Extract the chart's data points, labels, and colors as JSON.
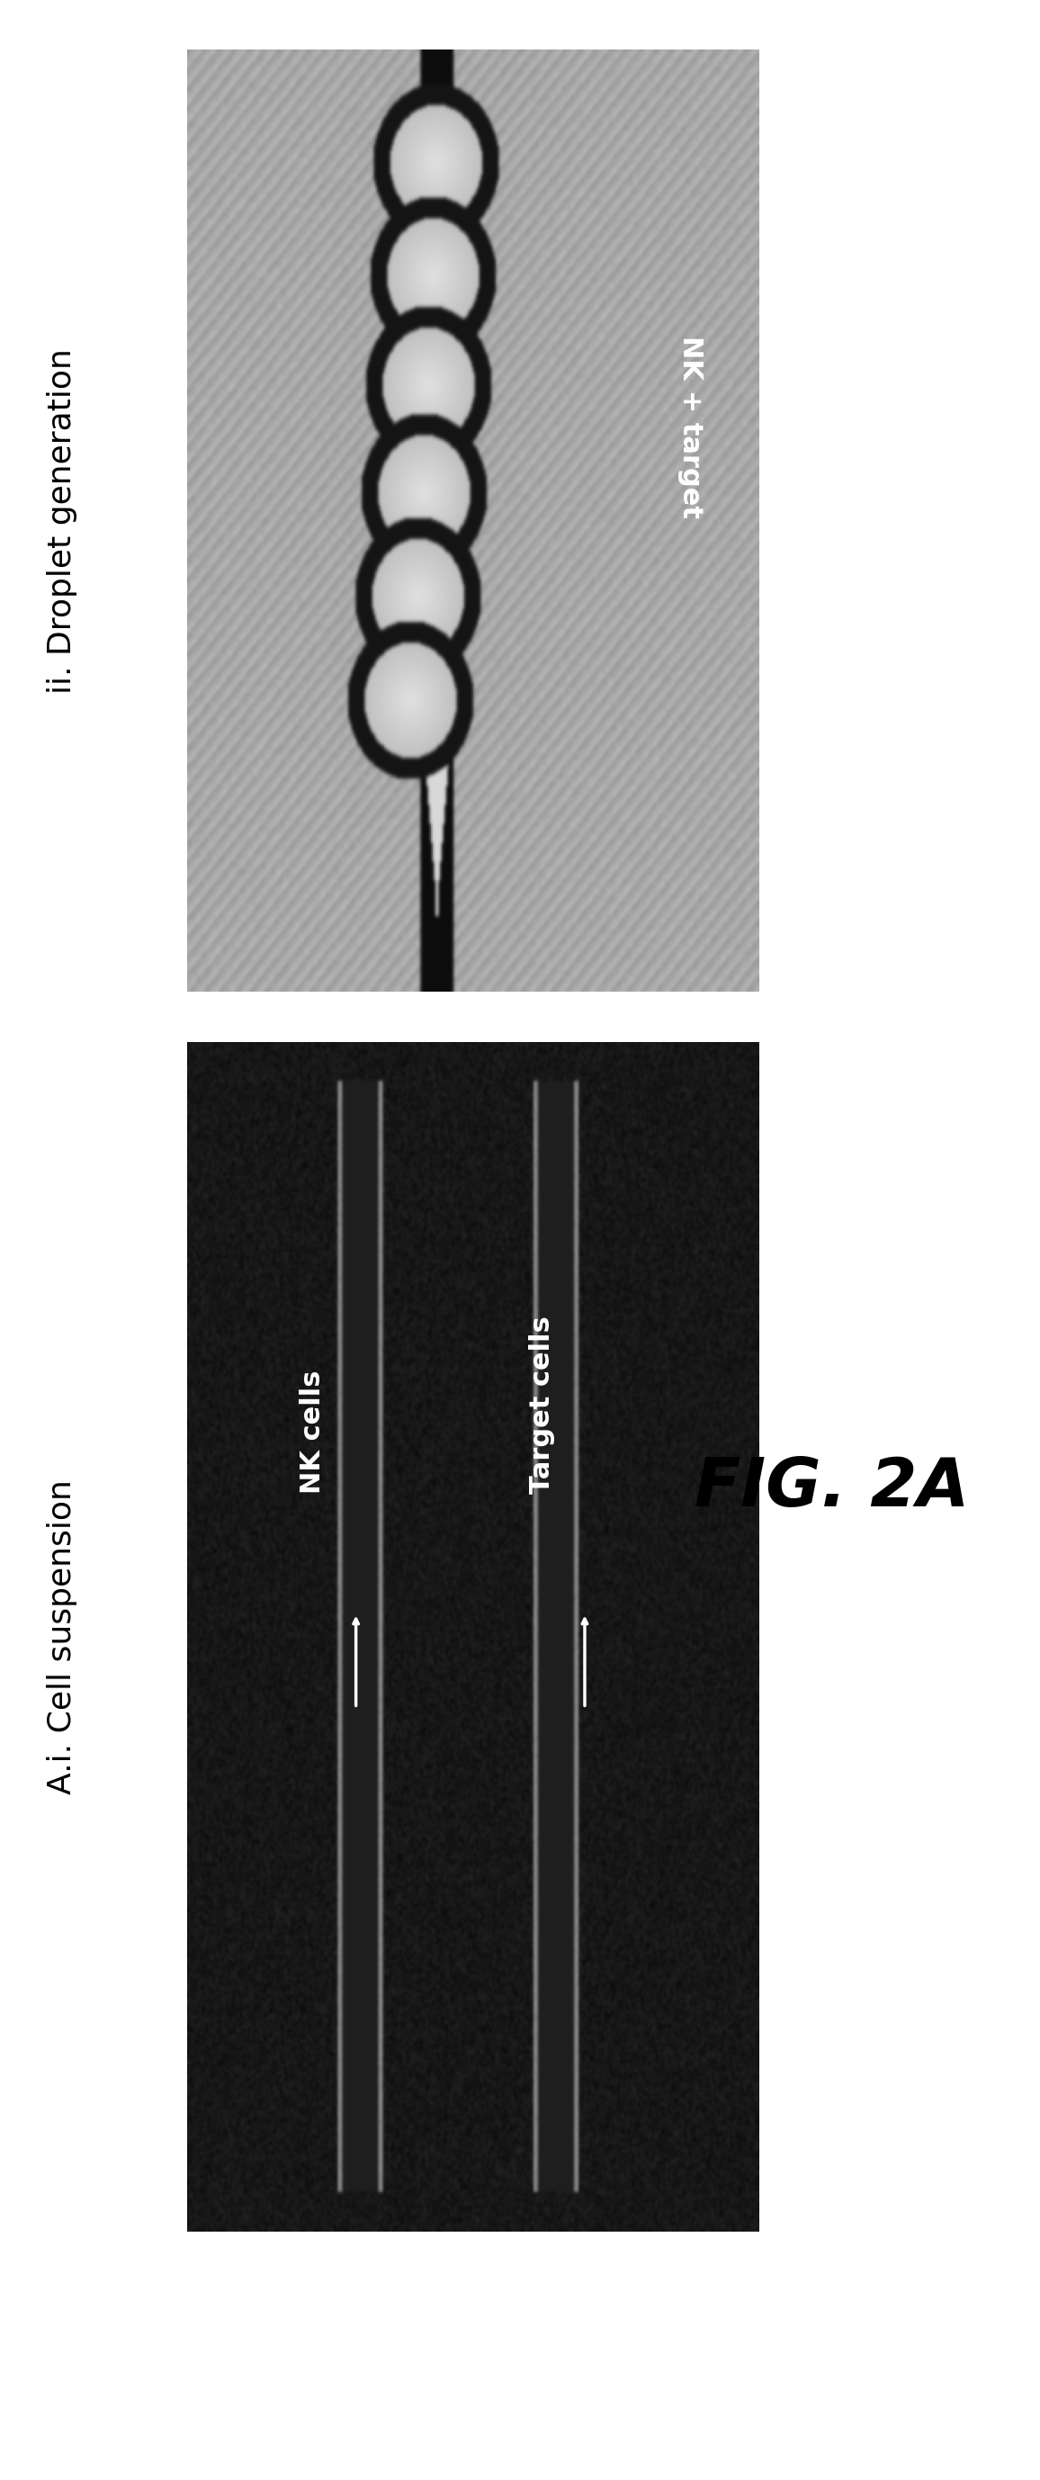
{
  "figure_title": "FIG. 2A",
  "label_ai": "A.i. Cell suspension",
  "label_ii": "ii. Droplet generation",
  "img_left_label_nk": "NK cells",
  "img_left_label_target": "Target cells",
  "img_right_label": "NK + target",
  "bg_color": "#ffffff",
  "figure_width": 11.56,
  "figure_height": 27.56,
  "panel_label_fontsize": 26,
  "title_fontsize": 54,
  "img_text_fontsize": 22
}
